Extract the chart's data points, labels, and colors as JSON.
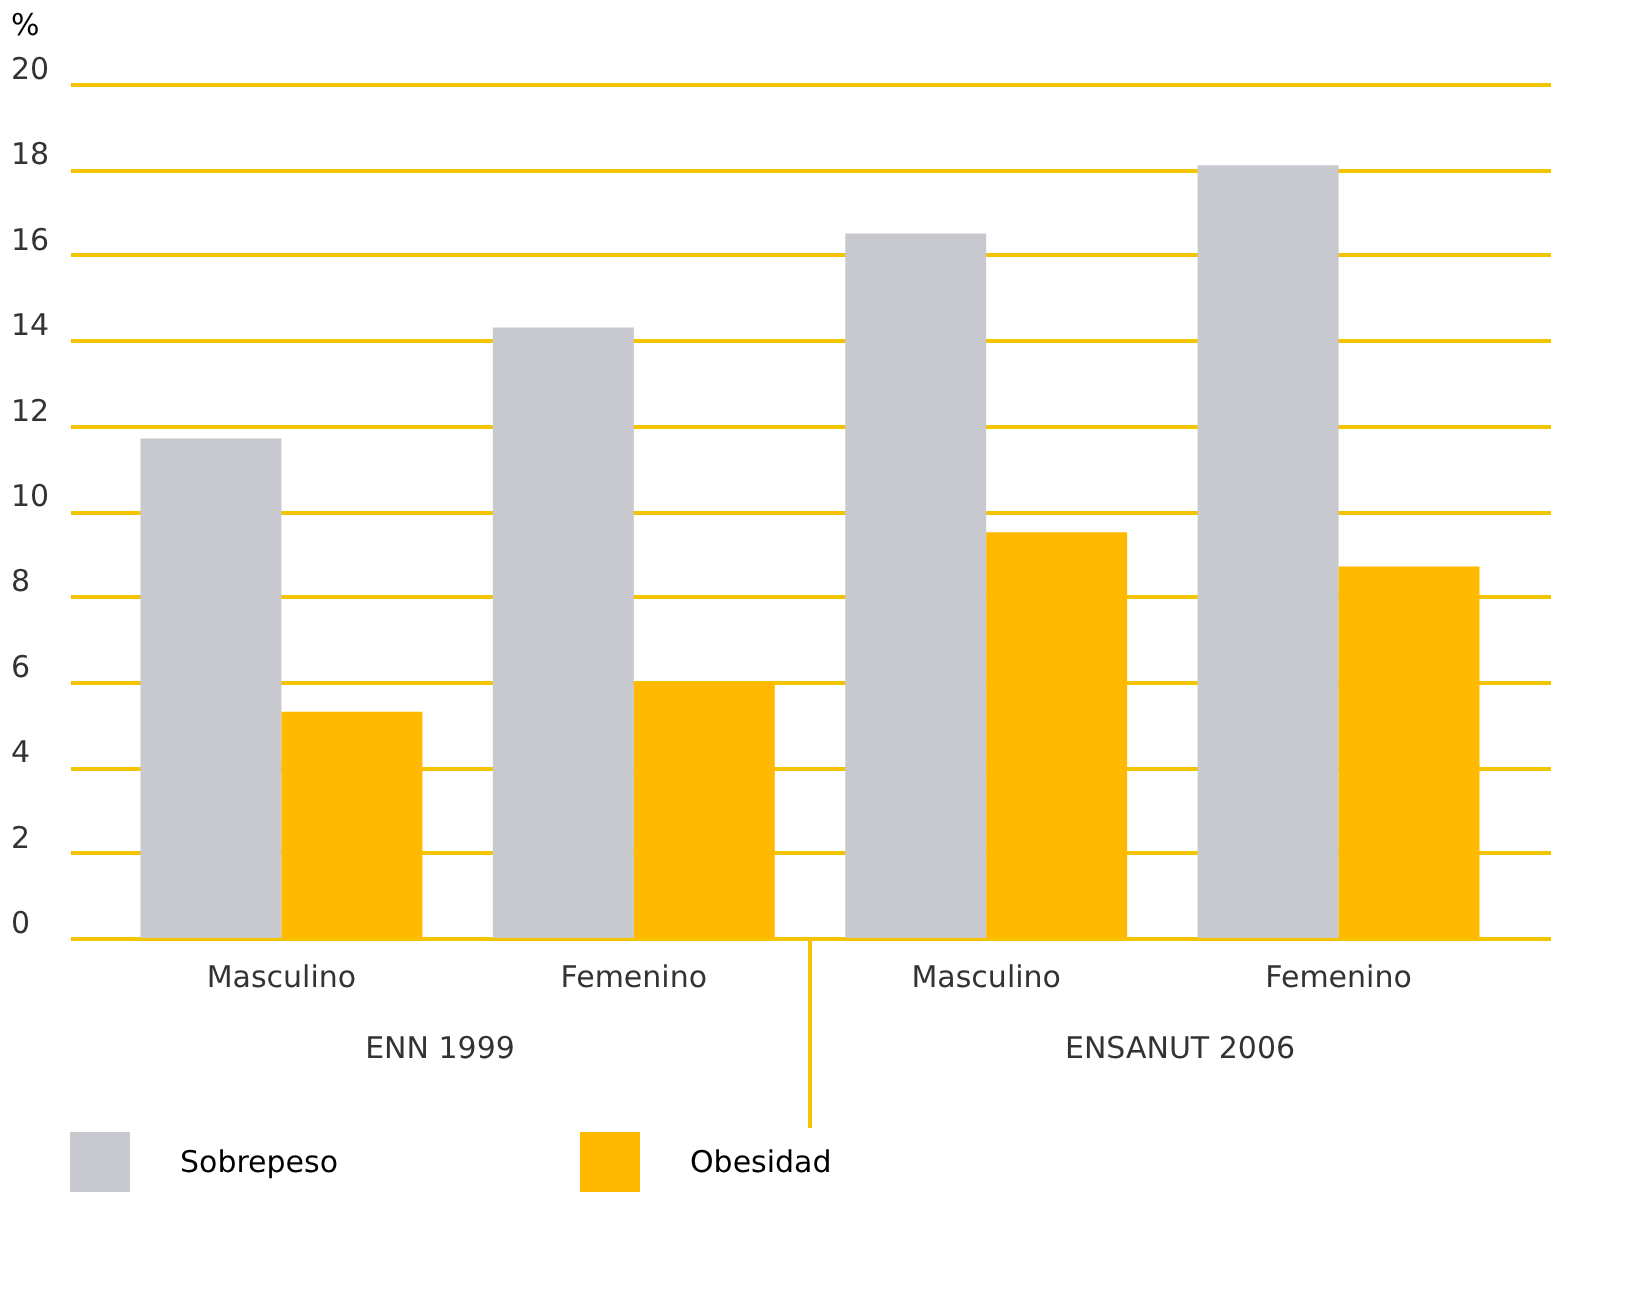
{
  "chart_data": {
    "type": "bar",
    "ylabel": "%",
    "categories": [
      "Masculino",
      "Femenino",
      "Masculino",
      "Femenino"
    ],
    "series": [
      {
        "name": "Sobrepeso",
        "color": "#c8c9cf",
        "values": [
          11.7,
          14.3,
          16.5,
          18.1
        ]
      },
      {
        "name": "Obesidad",
        "color": "#ffb900",
        "values": [
          5.3,
          6.0,
          9.5,
          8.7
        ]
      }
    ],
    "annotations": [
      "ENN 1999",
      "ENSANUT 2006"
    ],
    "ylim": [
      0,
      20
    ],
    "yticks": [
      0,
      2,
      4,
      6,
      8,
      10,
      12,
      14,
      16,
      18,
      20
    ],
    "grid": "y",
    "legend": "bottom"
  }
}
